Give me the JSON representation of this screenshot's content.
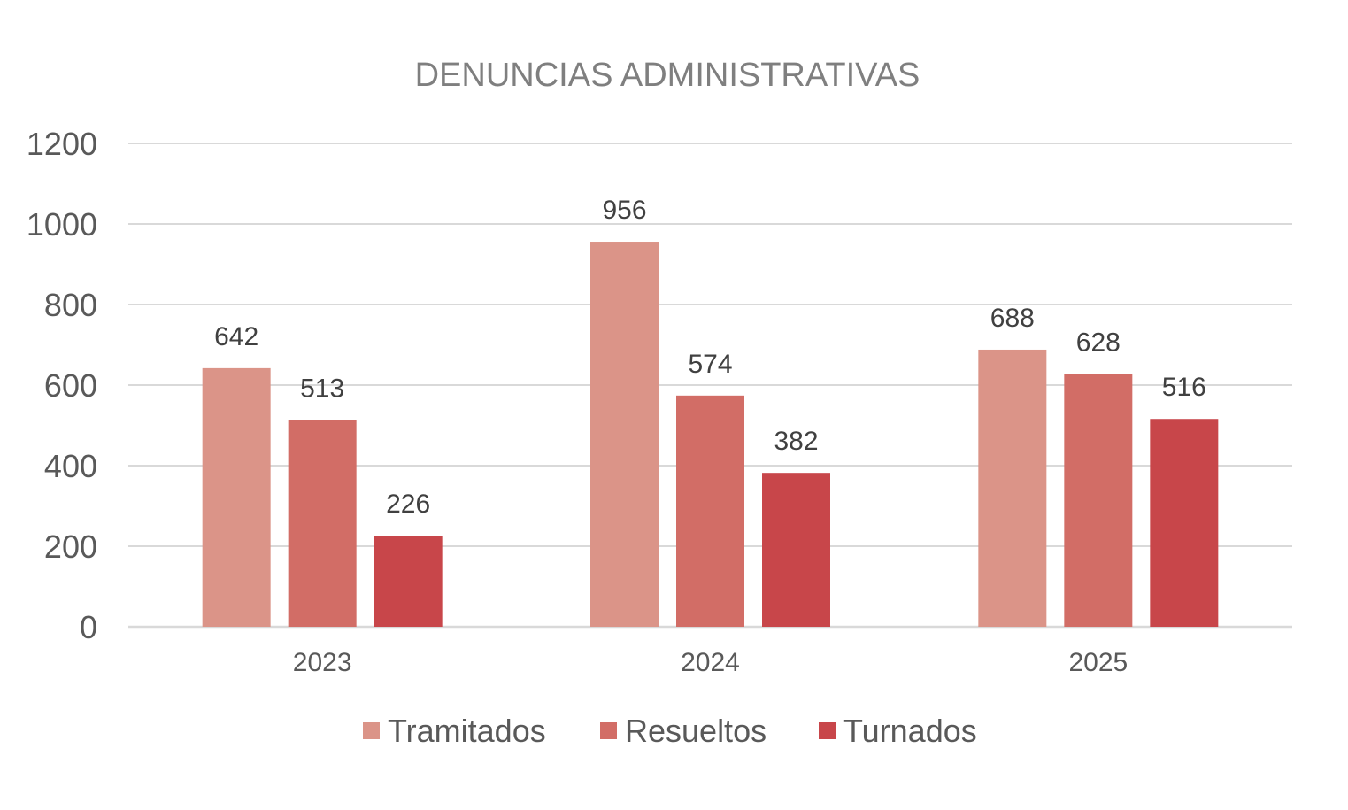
{
  "chart_data": {
    "type": "bar",
    "title": "DENUNCIAS ADMINISTRATIVAS",
    "xlabel": "",
    "ylabel": "",
    "categories": [
      "2023",
      "2024",
      "2025"
    ],
    "series": [
      {
        "name": "Tramitados",
        "values": [
          642,
          956,
          688
        ],
        "color": "#DB9488"
      },
      {
        "name": "Resueltos",
        "values": [
          513,
          574,
          628
        ],
        "color": "#D26D66"
      },
      {
        "name": "Turnados",
        "values": [
          226,
          382,
          516
        ],
        "color": "#C8464A"
      }
    ],
    "ylim": [
      0,
      1200
    ],
    "yticks": [
      "0",
      "200",
      "400",
      "600",
      "800",
      "1000",
      "1200"
    ],
    "grid": true,
    "legend": "bottom",
    "data_labels": true
  }
}
